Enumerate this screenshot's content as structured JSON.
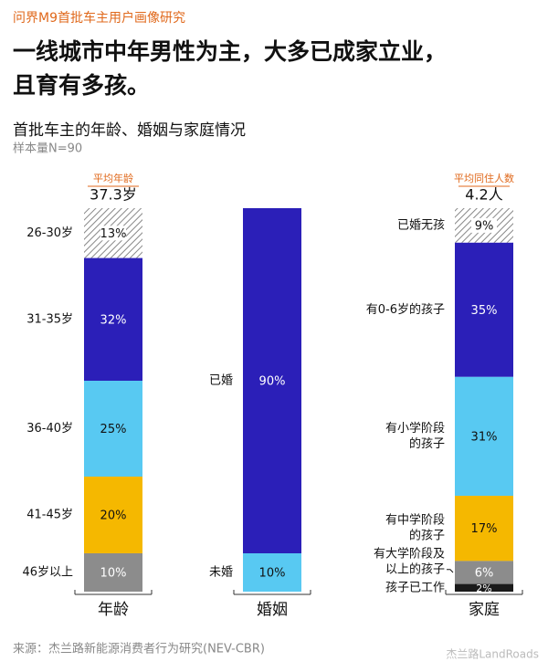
{
  "header": {
    "series_label": "问界M9首批车主用户画像研究",
    "headline": [
      "一线城市中年男性为主，大多已成家立业，",
      "且育有多孩。"
    ]
  },
  "chart_data": {
    "type": "stacked-column",
    "title": "首批车主的年龄、婚姻与家庭情况",
    "subtitle": "样本量N=90",
    "columns": [
      {
        "name": "年龄",
        "stat_label": "平均年龄",
        "stat": "37.3岁",
        "segments": [
          {
            "name": [
              "26-30岁"
            ],
            "value": 13,
            "value_label": "13%",
            "color": "#bdbdbd",
            "pattern": "hatch"
          },
          {
            "name": [
              "31-35岁"
            ],
            "value": 32,
            "value_label": "32%",
            "color": "#2b1fb8"
          },
          {
            "name": [
              "36-40岁"
            ],
            "value": 25,
            "value_label": "25%",
            "color": "#58c9f2"
          },
          {
            "name": [
              "41-45岁"
            ],
            "value": 20,
            "value_label": "20%",
            "color": "#f5b800"
          },
          {
            "name": [
              "46岁以上"
            ],
            "value": 10,
            "value_label": "10%",
            "color": "#8c8c8c"
          }
        ]
      },
      {
        "name": "婚姻",
        "segments": [
          {
            "name": [
              "已婚"
            ],
            "value": 90,
            "value_label": "90%",
            "color": "#2b1fb8"
          },
          {
            "name": [
              "未婚"
            ],
            "value": 10,
            "value_label": "10%",
            "color": "#58c9f2"
          }
        ]
      },
      {
        "name": "家庭",
        "stat_label": "平均同住人数",
        "stat": "4.2人",
        "segments": [
          {
            "name": [
              "已婚无孩"
            ],
            "value": 9,
            "value_label": "9%",
            "color": "#bdbdbd",
            "pattern": "hatch"
          },
          {
            "name": [
              "有0-6岁的孩子"
            ],
            "value": 35,
            "value_label": "35%",
            "color": "#2b1fb8"
          },
          {
            "name": [
              "有小学阶段",
              "的孩子"
            ],
            "value": 31,
            "value_label": "31%",
            "color": "#58c9f2"
          },
          {
            "name": [
              "有中学阶段",
              "的孩子"
            ],
            "value": 17,
            "value_label": "17%",
            "color": "#f5b800"
          },
          {
            "name": [
              "有大学阶段及",
              "以上的孩子"
            ],
            "value": 6,
            "value_label": "6%",
            "color": "#8c8c8c"
          },
          {
            "name": [
              "孩子已工作"
            ],
            "value": 2,
            "value_label": "2%",
            "color": "#1a1a1a"
          }
        ]
      }
    ]
  },
  "footer": {
    "source": "来源：杰兰路新能源消费者行为研究(NEV-CBR)",
    "watermark": "杰兰路LandRoads"
  }
}
